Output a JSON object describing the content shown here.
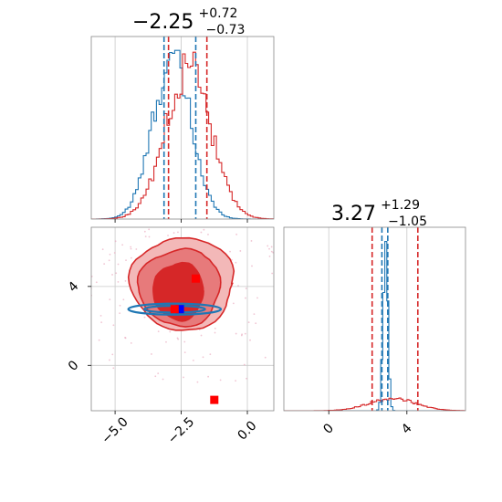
{
  "chart_data": [
    {
      "type": "histogram",
      "panel": "top-left",
      "title": {
        "value": "−2.25",
        "sup": "+0.72",
        "sub": "−0.73"
      },
      "xlim": [
        -5.9,
        1.0
      ],
      "grid": true,
      "colors": {
        "blue": "#1f77b4",
        "red": "#d62728"
      },
      "bins": {
        "start": -5.9,
        "end": 1.0,
        "count": 70
      },
      "series": [
        {
          "color": "blue",
          "center": -2.85,
          "width": 0.72,
          "peak_counts": 1.0
        },
        {
          "color": "red",
          "center": -2.25,
          "width": 0.85,
          "peak_counts": 0.95
        }
      ],
      "vlines": [
        {
          "color": "blue",
          "x": -3.15
        },
        {
          "color": "red",
          "x": -2.98
        },
        {
          "color": "blue",
          "x": -1.95
        },
        {
          "color": "red",
          "x": -1.53
        }
      ]
    },
    {
      "type": "histogram",
      "panel": "bottom-right",
      "title": {
        "value": "3.27",
        "sup": "+1.29",
        "sub": "−1.05"
      },
      "xlim": [
        -2.3,
        7.0
      ],
      "xticks": [
        {
          "value": 0,
          "label": "0"
        },
        {
          "value": 4,
          "label": "4"
        }
      ],
      "grid": true,
      "series": [
        {
          "color": "blue",
          "center": 2.9,
          "width": 0.12,
          "peak_counts": 1.0
        },
        {
          "color": "red",
          "center": 3.27,
          "width": 1.2,
          "peak_counts": 0.075
        }
      ],
      "vlines": [
        {
          "color": "red",
          "x": 2.22
        },
        {
          "color": "blue",
          "x": 2.72
        },
        {
          "color": "blue",
          "x": 3.02
        },
        {
          "color": "red",
          "x": 4.56
        }
      ]
    },
    {
      "type": "contour",
      "panel": "bottom-left",
      "xlim": [
        -5.9,
        1.0
      ],
      "ylim": [
        -2.3,
        7.0
      ],
      "xticks": [
        {
          "value": -5.0,
          "label": "−5.0"
        },
        {
          "value": -2.5,
          "label": "−2.5"
        },
        {
          "value": 0.0,
          "label": "0.0"
        }
      ],
      "yticks": [
        {
          "value": 0,
          "label": "0"
        },
        {
          "value": 4,
          "label": "4"
        }
      ],
      "grid": true,
      "red_contours": [
        {
          "level": "outer",
          "fill": "#f3b8b8",
          "center": [
            -2.45,
            4.15
          ],
          "rx": 1.95,
          "ry": 2.35
        },
        {
          "level": "mid",
          "fill": "#e77a7b",
          "center": [
            -2.55,
            3.95
          ],
          "rx": 1.55,
          "ry": 1.95
        },
        {
          "level": "inner",
          "fill": "#d62728",
          "center": [
            -2.6,
            3.75
          ],
          "rx": 0.95,
          "ry": 1.45
        }
      ],
      "blue_contours": [
        {
          "center": [
            -2.75,
            2.85
          ],
          "rx": 1.75,
          "ry": 0.28
        },
        {
          "center": [
            -2.75,
            2.85
          ],
          "rx": 1.15,
          "ry": 0.17
        }
      ],
      "markers": [
        {
          "color": "red",
          "x": -1.95,
          "y": 4.4
        },
        {
          "color": "red",
          "x": -1.25,
          "y": -1.75
        },
        {
          "color": "blue",
          "x": -2.55,
          "y": 2.85
        },
        {
          "color": "red",
          "x": -2.75,
          "y": 2.85
        }
      ]
    }
  ]
}
